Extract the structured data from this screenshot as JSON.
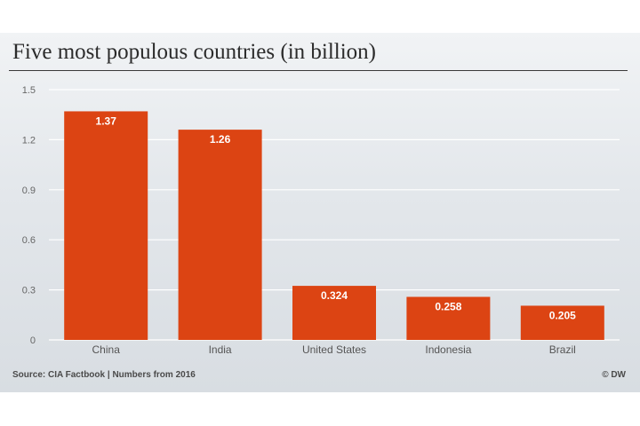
{
  "colors": {
    "bar": "#dc4413",
    "grid": "#ffffff",
    "axis_text": "#666666",
    "category_text": "#555555",
    "value_label": "#ffffff",
    "background": "#e3e7eb"
  },
  "footer": {
    "source": "Source: CIA Factbook | Numbers from 2016",
    "credit": "© DW"
  },
  "chart_data": {
    "type": "bar",
    "title": "Five most populous countries (in billion)",
    "xlabel": "",
    "ylabel": "",
    "categories": [
      "China",
      "India",
      "United States",
      "Indonesia",
      "Brazil"
    ],
    "values": [
      1.37,
      1.26,
      0.324,
      0.258,
      0.205
    ],
    "value_labels": [
      "1.37",
      "1.26",
      "0.324",
      "0.258",
      "0.205"
    ],
    "ylim": [
      0,
      1.5
    ],
    "yticks": [
      0,
      0.3,
      0.6,
      0.9,
      1.2,
      1.5
    ],
    "ytick_labels": [
      "0",
      "0.3",
      "0.6",
      "0.9",
      "1.2",
      "1.5"
    ],
    "grid": true,
    "legend": "none"
  }
}
